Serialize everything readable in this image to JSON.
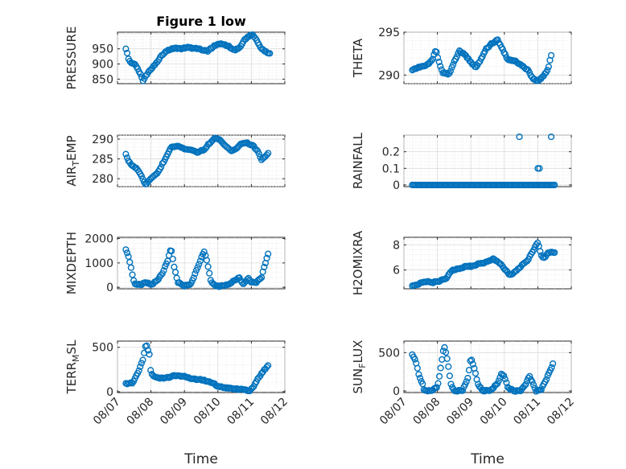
{
  "figure_title": "Figure 1 low",
  "marker_color": "#0072BD",
  "chart_data": [
    {
      "type": "scatter",
      "title": "Figure 1 low",
      "ylabel": "PRESSURE",
      "xlabel": "",
      "ylim": [
        835,
        1005
      ],
      "yticks": [
        850,
        900,
        950
      ],
      "xlim": [
        0,
        5
      ],
      "xtick_labels": [],
      "grid": true,
      "curve": [
        [
          0.25,
          950
        ],
        [
          0.35,
          910
        ],
        [
          0.55,
          895
        ],
        [
          0.7,
          865
        ],
        [
          0.75,
          843
        ],
        [
          0.9,
          870
        ],
        [
          1.1,
          895
        ],
        [
          1.3,
          925
        ],
        [
          1.5,
          945
        ],
        [
          1.7,
          953
        ],
        [
          1.9,
          950
        ],
        [
          2.1,
          955
        ],
        [
          2.4,
          950
        ],
        [
          2.7,
          943
        ],
        [
          2.9,
          960
        ],
        [
          3.1,
          968
        ],
        [
          3.3,
          960
        ],
        [
          3.5,
          944
        ],
        [
          3.65,
          955
        ],
        [
          3.8,
          980
        ],
        [
          3.95,
          995
        ],
        [
          4.05,
          995
        ],
        [
          4.2,
          970
        ],
        [
          4.3,
          950
        ],
        [
          4.45,
          940
        ],
        [
          4.55,
          935
        ]
      ]
    },
    {
      "type": "scatter",
      "ylabel": "THETA",
      "xlabel": "",
      "ylim": [
        289,
        295
      ],
      "yticks": [
        290,
        295
      ],
      "xlim": [
        0,
        5
      ],
      "xtick_labels": [],
      "grid": true,
      "curve": [
        [
          0.25,
          290.6
        ],
        [
          0.5,
          291
        ],
        [
          0.7,
          291.2
        ],
        [
          0.85,
          291.8
        ],
        [
          0.95,
          293
        ],
        [
          1.05,
          291.5
        ],
        [
          1.15,
          290.3
        ],
        [
          1.35,
          290.1
        ],
        [
          1.5,
          291.5
        ],
        [
          1.65,
          292.8
        ],
        [
          1.8,
          292.5
        ],
        [
          2.0,
          291.5
        ],
        [
          2.15,
          290.9
        ],
        [
          2.3,
          291.8
        ],
        [
          2.45,
          293
        ],
        [
          2.6,
          293.6
        ],
        [
          2.8,
          294.1
        ],
        [
          2.95,
          293
        ],
        [
          3.1,
          291.8
        ],
        [
          3.35,
          291.6
        ],
        [
          3.55,
          291
        ],
        [
          3.7,
          290.6
        ],
        [
          3.85,
          289.6
        ],
        [
          4.0,
          289.3
        ],
        [
          4.15,
          289.8
        ],
        [
          4.3,
          290.6
        ],
        [
          4.4,
          292.3
        ]
      ]
    },
    {
      "type": "scatter",
      "ylabel": "AIR_TEMP",
      "xlabel": "",
      "ylim": [
        278,
        291
      ],
      "yticks": [
        280,
        285,
        290
      ],
      "xlim": [
        0,
        5
      ],
      "xtick_labels": [],
      "grid": true,
      "curve": [
        [
          0.25,
          286.3
        ],
        [
          0.3,
          285
        ],
        [
          0.4,
          283.5
        ],
        [
          0.55,
          282.8
        ],
        [
          0.7,
          281
        ],
        [
          0.8,
          279
        ],
        [
          0.85,
          278.4
        ],
        [
          1.0,
          280
        ],
        [
          1.15,
          281
        ],
        [
          1.3,
          283
        ],
        [
          1.45,
          285.5
        ],
        [
          1.6,
          288
        ],
        [
          1.8,
          288.3
        ],
        [
          2.0,
          287.5
        ],
        [
          2.2,
          287.2
        ],
        [
          2.4,
          286.5
        ],
        [
          2.6,
          287.5
        ],
        [
          2.75,
          289
        ],
        [
          2.9,
          290.3
        ],
        [
          3.05,
          290
        ],
        [
          3.2,
          288.5
        ],
        [
          3.4,
          287
        ],
        [
          3.55,
          287.5
        ],
        [
          3.7,
          288.8
        ],
        [
          3.9,
          289
        ],
        [
          4.05,
          288.3
        ],
        [
          4.2,
          287
        ],
        [
          4.3,
          284.8
        ],
        [
          4.45,
          286
        ],
        [
          4.5,
          286.5
        ]
      ]
    },
    {
      "type": "scatter",
      "ylabel": "RAINFALL",
      "xlabel": "",
      "ylim": [
        -0.01,
        0.3
      ],
      "yticks": [
        0,
        0.1,
        0.2
      ],
      "xlim": [
        0,
        5
      ],
      "xtick_labels": [],
      "grid": true,
      "curve": [
        [
          0.25,
          0
        ],
        [
          4.5,
          0
        ]
      ],
      "extra_points": [
        [
          3.45,
          0.29
        ],
        [
          4.0,
          0.1
        ],
        [
          4.05,
          0.1
        ],
        [
          4.4,
          0.29
        ]
      ]
    },
    {
      "type": "scatter",
      "ylabel": "MIXDEPTH",
      "xlabel": "",
      "ylim": [
        -60,
        2050
      ],
      "yticks": [
        0,
        1000,
        2000
      ],
      "xlim": [
        0,
        5
      ],
      "xtick_labels": [],
      "grid": true,
      "curve": [
        [
          0.25,
          1550
        ],
        [
          0.3,
          1400
        ],
        [
          0.4,
          850
        ],
        [
          0.45,
          500
        ],
        [
          0.5,
          150
        ],
        [
          0.7,
          100
        ],
        [
          0.85,
          200
        ],
        [
          1.0,
          100
        ],
        [
          1.2,
          300
        ],
        [
          1.35,
          600
        ],
        [
          1.5,
          1100
        ],
        [
          1.6,
          1600
        ],
        [
          1.7,
          800
        ],
        [
          1.8,
          200
        ],
        [
          2.0,
          60
        ],
        [
          2.2,
          150
        ],
        [
          2.35,
          650
        ],
        [
          2.5,
          1200
        ],
        [
          2.6,
          1500
        ],
        [
          2.7,
          900
        ],
        [
          2.8,
          200
        ],
        [
          3.0,
          30
        ],
        [
          3.3,
          100
        ],
        [
          3.5,
          300
        ],
        [
          3.65,
          400
        ],
        [
          3.75,
          100
        ],
        [
          3.9,
          400
        ],
        [
          4.0,
          200
        ],
        [
          4.15,
          200
        ],
        [
          4.3,
          400
        ],
        [
          4.4,
          900
        ],
        [
          4.5,
          1350
        ]
      ]
    },
    {
      "type": "scatter",
      "ylabel": "H2OMIXRA",
      "xlabel": "",
      "ylim": [
        4.5,
        8.6
      ],
      "yticks": [
        6,
        8
      ],
      "xlim": [
        0,
        5
      ],
      "xtick_labels": [],
      "grid": true,
      "curve": [
        [
          0.25,
          4.7
        ],
        [
          0.45,
          4.9
        ],
        [
          0.65,
          5.1
        ],
        [
          0.85,
          5
        ],
        [
          1.05,
          5.1
        ],
        [
          1.25,
          5.3
        ],
        [
          1.45,
          6
        ],
        [
          1.65,
          6.1
        ],
        [
          1.85,
          6.3
        ],
        [
          2.05,
          6.3
        ],
        [
          2.25,
          6.5
        ],
        [
          2.45,
          6.6
        ],
        [
          2.65,
          6.9
        ],
        [
          2.85,
          6.6
        ],
        [
          3.0,
          6.1
        ],
        [
          3.15,
          5.6
        ],
        [
          3.3,
          5.8
        ],
        [
          3.5,
          6.3
        ],
        [
          3.7,
          6.8
        ],
        [
          3.85,
          7.5
        ],
        [
          4.0,
          8.2
        ],
        [
          4.1,
          7.2
        ],
        [
          4.2,
          6.9
        ],
        [
          4.3,
          7.4
        ],
        [
          4.5,
          7.4
        ]
      ]
    },
    {
      "type": "scatter",
      "ylabel": "TERR_MSL",
      "xlabel": "Time",
      "ylim": [
        -10,
        570
      ],
      "yticks": [
        0,
        500
      ],
      "xlim": [
        0,
        5
      ],
      "xtick_labels": [
        "08/07",
        "08/08",
        "08/09",
        "08/10",
        "08/11",
        "08/12"
      ],
      "grid": true,
      "curve": [
        [
          0.25,
          90
        ],
        [
          0.45,
          100
        ],
        [
          0.6,
          200
        ],
        [
          0.75,
          350
        ],
        [
          0.85,
          540
        ],
        [
          0.95,
          430
        ],
        [
          1.0,
          200
        ],
        [
          1.2,
          150
        ],
        [
          1.5,
          160
        ],
        [
          1.7,
          180
        ],
        [
          2.0,
          170
        ],
        [
          2.3,
          140
        ],
        [
          2.6,
          130
        ],
        [
          2.85,
          100
        ],
        [
          3.0,
          60
        ],
        [
          3.3,
          40
        ],
        [
          3.55,
          30
        ],
        [
          3.8,
          25
        ],
        [
          3.95,
          10
        ],
        [
          4.05,
          50
        ],
        [
          4.2,
          150
        ],
        [
          4.35,
          230
        ],
        [
          4.5,
          290
        ]
      ]
    },
    {
      "type": "scatter",
      "ylabel": "SUN_FLUX",
      "xlabel": "Time",
      "ylim": [
        -20,
        650
      ],
      "yticks": [
        0,
        500
      ],
      "xlim": [
        0,
        5
      ],
      "xtick_labels": [
        "08/07",
        "08/08",
        "08/09",
        "08/10",
        "08/11",
        "08/12"
      ],
      "grid": true,
      "curve": [
        [
          0.25,
          470
        ],
        [
          0.35,
          400
        ],
        [
          0.45,
          200
        ],
        [
          0.55,
          100
        ],
        [
          0.6,
          10
        ],
        [
          0.8,
          0
        ],
        [
          1.0,
          50
        ],
        [
          1.1,
          300
        ],
        [
          1.2,
          600
        ],
        [
          1.3,
          400
        ],
        [
          1.4,
          100
        ],
        [
          1.5,
          0
        ],
        [
          1.75,
          10
        ],
        [
          1.9,
          150
        ],
        [
          2.0,
          430
        ],
        [
          2.1,
          300
        ],
        [
          2.2,
          100
        ],
        [
          2.35,
          0
        ],
        [
          2.6,
          10
        ],
        [
          2.8,
          100
        ],
        [
          2.9,
          220
        ],
        [
          3.0,
          200
        ],
        [
          3.1,
          50
        ],
        [
          3.3,
          0
        ],
        [
          3.5,
          10
        ],
        [
          3.65,
          100
        ],
        [
          3.75,
          200
        ],
        [
          3.85,
          100
        ],
        [
          3.95,
          0
        ],
        [
          4.1,
          20
        ],
        [
          4.25,
          150
        ],
        [
          4.45,
          350
        ]
      ]
    }
  ]
}
